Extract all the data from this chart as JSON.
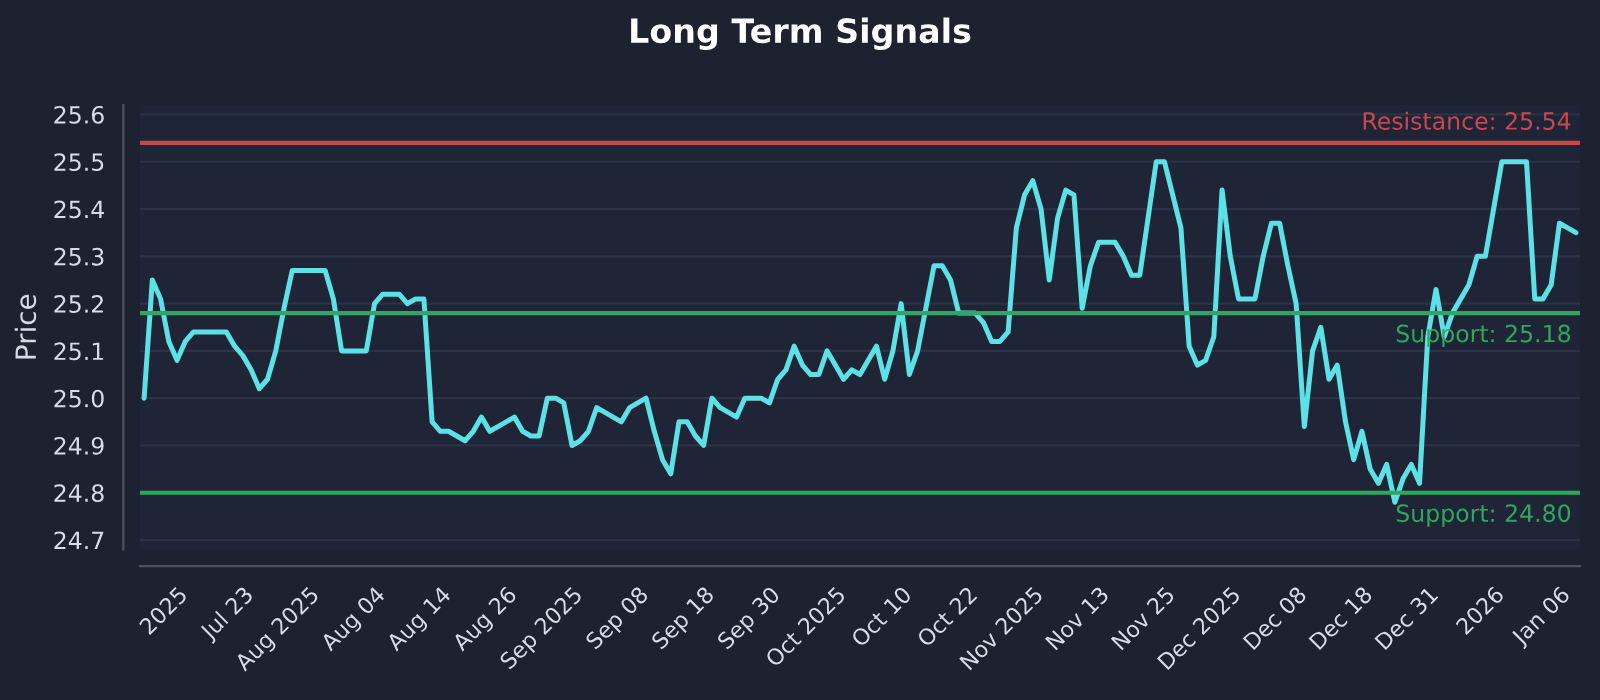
{
  "chart_data": {
    "type": "line",
    "title": "Long Term Signals",
    "ylabel": "Price",
    "categories": [
      null,
      null,
      null,
      null,
      "2025",
      null,
      null,
      null,
      null,
      null,
      null,
      null,
      "Jul 23",
      null,
      null,
      null,
      null,
      null,
      null,
      null,
      "Aug 2025",
      null,
      null,
      null,
      null,
      null,
      null,
      null,
      "Aug 04",
      null,
      null,
      null,
      null,
      null,
      null,
      null,
      "Aug 14",
      null,
      null,
      null,
      null,
      null,
      null,
      null,
      "Aug 26",
      null,
      null,
      null,
      null,
      null,
      null,
      null,
      "Sep 2025",
      null,
      null,
      null,
      null,
      null,
      null,
      null,
      "Sep 08",
      null,
      null,
      null,
      null,
      null,
      null,
      null,
      "Sep 18",
      null,
      null,
      null,
      null,
      null,
      null,
      null,
      "Sep 30",
      null,
      null,
      null,
      null,
      null,
      null,
      null,
      "Oct 2025",
      null,
      null,
      null,
      null,
      null,
      null,
      null,
      "Oct 10",
      null,
      null,
      null,
      null,
      null,
      null,
      null,
      "Oct 22",
      null,
      null,
      null,
      null,
      null,
      null,
      null,
      "Nov 2025",
      null,
      null,
      null,
      null,
      null,
      null,
      null,
      "Nov 13",
      null,
      null,
      null,
      null,
      null,
      null,
      null,
      "Nov 25",
      null,
      null,
      null,
      null,
      null,
      null,
      null,
      "Dec 2025",
      null,
      null,
      null,
      null,
      null,
      null,
      null,
      "Dec 08",
      null,
      null,
      null,
      null,
      null,
      null,
      null,
      "Dec 18",
      null,
      null,
      null,
      null,
      null,
      null,
      null,
      "Dec 31",
      null,
      null,
      null,
      null,
      null,
      null,
      null,
      "2026",
      null,
      null,
      null,
      null,
      null,
      null,
      null,
      "Jan 06",
      null,
      null
    ],
    "series": [
      {
        "color": "#5ce1e6",
        "values": [
          25.0,
          25.25,
          25.21,
          25.12,
          25.08,
          25.12,
          25.14,
          25.14,
          25.14,
          25.14,
          25.14,
          25.11,
          25.09,
          25.06,
          25.02,
          25.04,
          25.1,
          25.19,
          25.27,
          25.27,
          25.27,
          25.27,
          25.27,
          25.21,
          25.1,
          25.1,
          25.1,
          25.1,
          25.2,
          25.22,
          25.22,
          25.22,
          25.2,
          25.21,
          25.21,
          24.95,
          24.93,
          24.93,
          24.92,
          24.91,
          24.93,
          24.96,
          24.93,
          24.94,
          24.95,
          24.96,
          24.93,
          24.92,
          24.92,
          25.0,
          25.0,
          24.99,
          24.9,
          24.91,
          24.93,
          24.98,
          24.97,
          24.96,
          24.95,
          24.98,
          24.99,
          25.0,
          24.93,
          24.87,
          24.84,
          24.95,
          24.95,
          24.92,
          24.9,
          25.0,
          24.98,
          24.97,
          24.96,
          25.0,
          25.0,
          25.0,
          24.99,
          25.04,
          25.06,
          25.11,
          25.07,
          25.05,
          25.05,
          25.1,
          25.07,
          25.04,
          25.06,
          25.05,
          25.08,
          25.11,
          25.04,
          25.1,
          25.2,
          25.05,
          25.1,
          25.19,
          25.28,
          25.28,
          25.25,
          25.18,
          25.18,
          25.18,
          25.16,
          25.12,
          25.12,
          25.14,
          25.36,
          25.43,
          25.46,
          25.4,
          25.25,
          25.38,
          25.44,
          25.43,
          25.19,
          25.28,
          25.33,
          25.33,
          25.33,
          25.3,
          25.26,
          25.26,
          25.38,
          25.5,
          25.5,
          25.43,
          25.36,
          25.11,
          25.07,
          25.08,
          25.13,
          25.44,
          25.3,
          25.21,
          25.21,
          25.21,
          25.3,
          25.37,
          25.37,
          25.28,
          25.2,
          24.94,
          25.1,
          25.15,
          25.04,
          25.07,
          24.95,
          24.87,
          24.93,
          24.85,
          24.82,
          24.86,
          24.78,
          24.83,
          24.86,
          24.82,
          25.13,
          25.23,
          25.13,
          25.18,
          25.21,
          25.24,
          25.3,
          25.3,
          25.4,
          25.5,
          25.5,
          25.5,
          25.5,
          25.21,
          25.21,
          25.24,
          25.37,
          25.36,
          25.35
        ]
      }
    ],
    "ylim": [
      24.68,
      25.62
    ],
    "yticks": [
      24.7,
      24.8,
      24.9,
      {
        "value": 25.0,
        "label": "25.0"
      },
      25.1,
      25.2,
      25.3,
      25.4,
      25.5,
      25.6
    ],
    "ref_lines": [
      {
        "axis": "y",
        "value": 25.54,
        "label": "Resistance: 25.54",
        "color": "#c9474f"
      },
      {
        "axis": "y",
        "value": 25.18,
        "label": "Support: 25.18",
        "color": "#2ea85f"
      },
      {
        "axis": "y",
        "value": 24.8,
        "label": "Support: 24.80",
        "color": "#2ea85f"
      }
    ],
    "grid": "y",
    "legend": false,
    "marker": "none",
    "line_style": "solid"
  }
}
